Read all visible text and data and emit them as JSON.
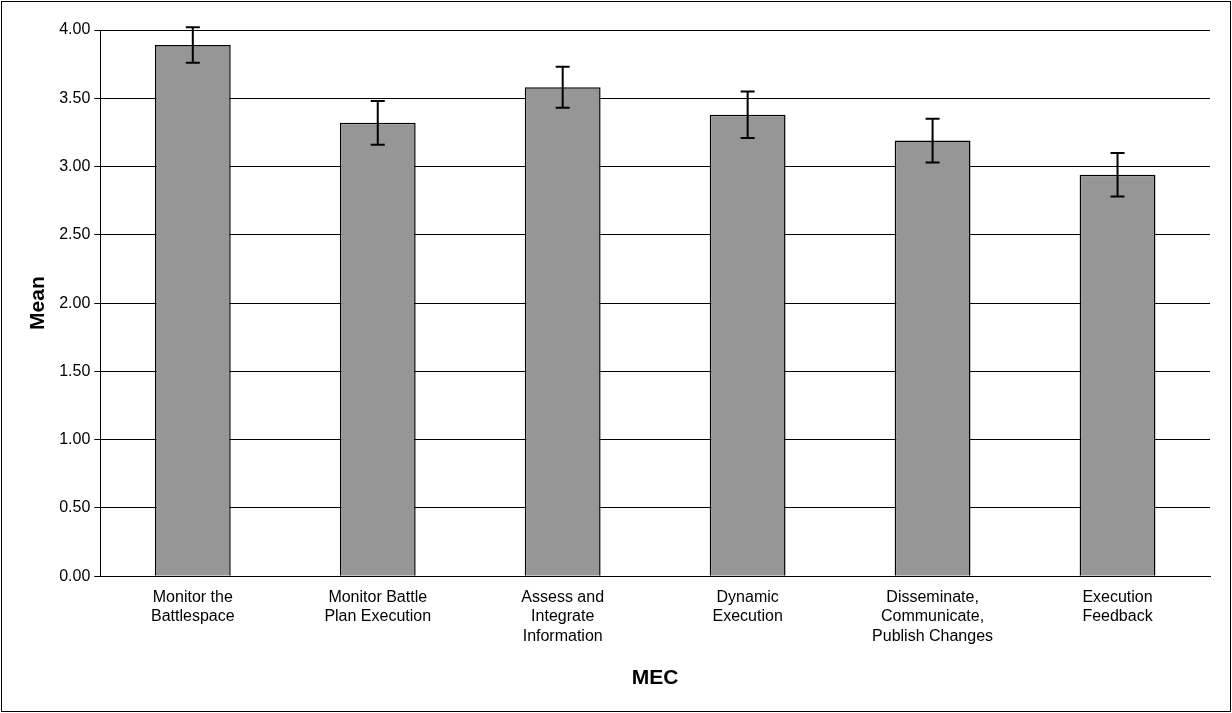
{
  "chart_data": {
    "type": "bar",
    "xlabel": "MEC",
    "ylabel": "Mean",
    "categories": [
      "Monitor the Battlespace",
      "Monitor Battle Plan Execution",
      "Assess and Integrate Information",
      "Dynamic Execution",
      "Disseminate, Communicate, Publish Changes",
      "Execution Feedback"
    ],
    "values": [
      3.89,
      3.32,
      3.58,
      3.38,
      3.19,
      2.94
    ],
    "errors": [
      0.13,
      0.16,
      0.15,
      0.17,
      0.16,
      0.16
    ],
    "color": "#969696",
    "ylim": [
      0,
      4
    ],
    "yticks": [
      {
        "value": 0,
        "label": "0.00"
      },
      {
        "value": 0.5,
        "label": "0.50"
      },
      {
        "value": 1,
        "label": "1.00"
      },
      {
        "value": 1.5,
        "label": "1.50"
      },
      {
        "value": 2,
        "label": "2.00"
      },
      {
        "value": 2.5,
        "label": "2.50"
      },
      {
        "value": 3,
        "label": "3.00"
      },
      {
        "value": 3.5,
        "label": "3.50"
      },
      {
        "value": 4,
        "label": "4.00"
      }
    ],
    "grid": "y",
    "legend": false
  }
}
